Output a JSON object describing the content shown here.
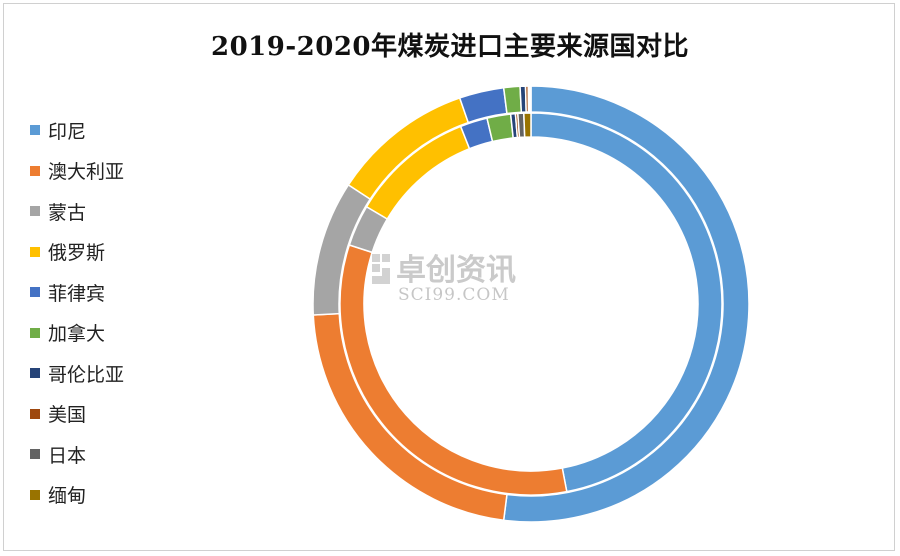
{
  "chart_data": {
    "type": "doughnut",
    "title": "2019-2020年煤炭进口主要来源国对比",
    "categories": [
      "印尼",
      "澳大利亚",
      "蒙古",
      "俄罗斯",
      "菲律宾",
      "加拿大",
      "哥伦比亚",
      "美国",
      "日本",
      "缅甸"
    ],
    "colors": [
      "#5b9bd5",
      "#ed7d31",
      "#a5a5a5",
      "#ffc000",
      "#4472c4",
      "#70ad47",
      "#264478",
      "#9e480e",
      "#636363",
      "#997300"
    ],
    "series": [
      {
        "ring": "outer",
        "values": [
          52.0,
          22.2,
          10.0,
          10.5,
          3.3,
          1.2,
          0.4,
          0.2,
          0.1,
          0.1
        ]
      },
      {
        "ring": "inner",
        "values": [
          47.0,
          33.0,
          3.5,
          10.5,
          2.3,
          2.0,
          0.4,
          0.2,
          0.5,
          0.6
        ]
      }
    ],
    "legend_position": "left",
    "start_angle_deg": 0,
    "direction": "clockwise"
  },
  "watermark": {
    "text_cn": "卓创资讯",
    "text_en": "SCI99.COM"
  }
}
